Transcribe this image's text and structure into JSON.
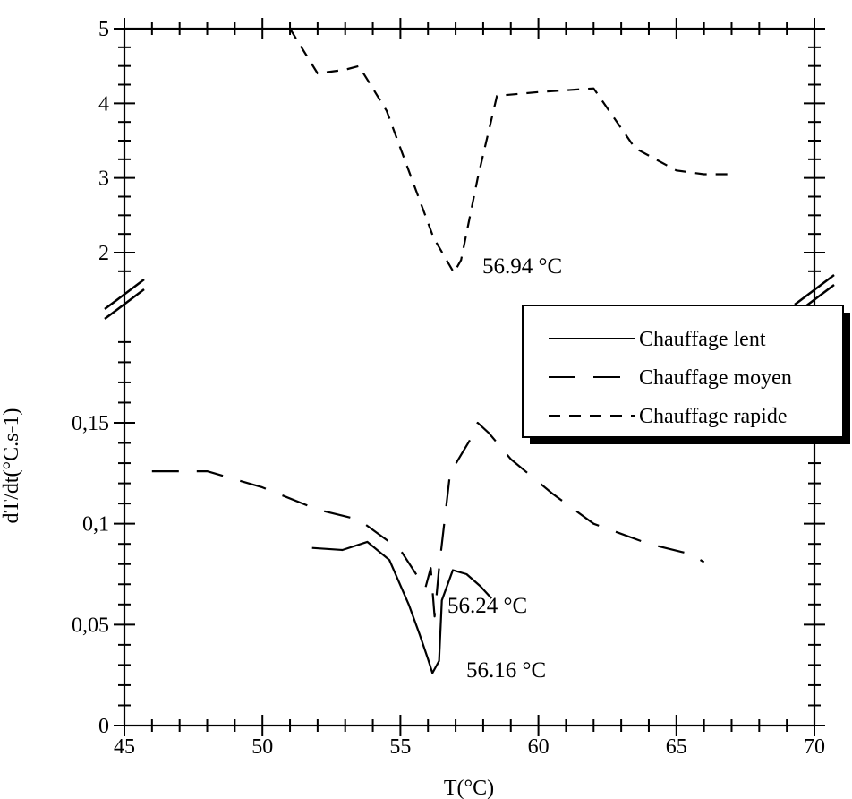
{
  "chart_data": {
    "type": "line",
    "xlabel": "T(°C)",
    "ylabel": "dT/dt(°C.s-1)",
    "xlim": [
      45,
      70
    ],
    "x_ticks": [
      "45",
      "50",
      "55",
      "60",
      "65",
      "70"
    ],
    "axis_break": "y",
    "y_ticks_upper": [
      "5",
      "4",
      "3",
      "2"
    ],
    "y_ticks_lower": [
      "0,15",
      "0,1",
      "0,05",
      "0"
    ],
    "ylim_upper": [
      1.4,
      5
    ],
    "ylim_lower": [
      0,
      0.19
    ],
    "grid": false,
    "legend_position": "right",
    "series": [
      {
        "name": "Chauffage lent",
        "style": "solid",
        "segment": "lower",
        "x": [
          51.8,
          52.9,
          53.8,
          54.6,
          55.3,
          55.7,
          56.0,
          56.16,
          56.4,
          56.5,
          56.9,
          57.4,
          57.9,
          58.3
        ],
        "y": [
          0.088,
          0.087,
          0.091,
          0.082,
          0.06,
          0.045,
          0.033,
          0.026,
          0.032,
          0.062,
          0.077,
          0.075,
          0.069,
          0.063
        ]
      },
      {
        "name": "Chauffage moyen",
        "style": "long-dash",
        "segment": "lower",
        "x": [
          46.0,
          48.0,
          50.0,
          52.0,
          53.5,
          55.0,
          55.9,
          56.1,
          56.24,
          56.4,
          56.8,
          57.5,
          57.8,
          58.2,
          59.0,
          60.5,
          62.0,
          64.0,
          65.5,
          66.0
        ],
        "y": [
          0.126,
          0.126,
          0.118,
          0.107,
          0.102,
          0.087,
          0.068,
          0.078,
          0.054,
          0.078,
          0.125,
          0.141,
          0.15,
          0.145,
          0.132,
          0.115,
          0.1,
          0.09,
          0.085,
          0.081
        ]
      },
      {
        "name": "Chauffage rapide",
        "style": "dash",
        "segment": "upper",
        "x": [
          51.0,
          52.0,
          53.0,
          53.5,
          54.5,
          55.5,
          56.2,
          56.94,
          57.2,
          57.8,
          58.5,
          60.0,
          62.0,
          63.5,
          65.0,
          66.0,
          67.0
        ],
        "y": [
          5.0,
          4.4,
          4.45,
          4.5,
          3.9,
          2.9,
          2.2,
          1.73,
          1.9,
          3.0,
          4.1,
          4.15,
          4.2,
          3.4,
          3.1,
          3.05,
          3.05
        ]
      }
    ],
    "annotations": [
      "56.94 °C",
      "56.24 °C",
      "56.16 °C"
    ]
  }
}
